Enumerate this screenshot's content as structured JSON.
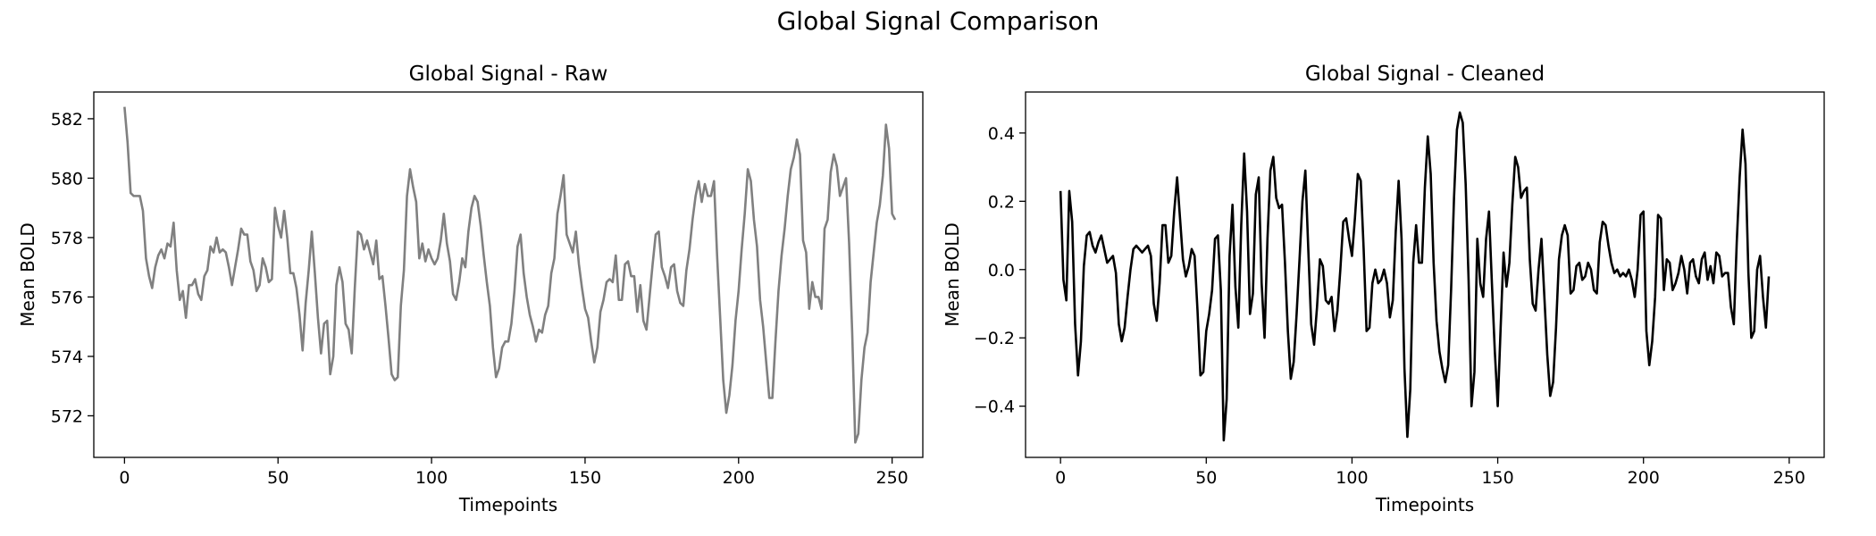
{
  "suptitle": "Global Signal Comparison",
  "chart_data": [
    {
      "type": "line",
      "title": "Global Signal - Raw",
      "xlabel": "Timepoints",
      "ylabel": "Mean BOLD",
      "xlim": [
        -10,
        260
      ],
      "ylim": [
        570.6,
        582.9
      ],
      "xticks": [
        0,
        50,
        100,
        150,
        200,
        250
      ],
      "yticks": [
        572,
        574,
        576,
        578,
        580,
        582
      ],
      "grid": false,
      "color": "#808080",
      "series": [
        {
          "x_start": 0,
          "x_step": 1,
          "values": [
            582.4,
            581.2,
            579.5,
            579.4,
            579.4,
            579.4,
            578.9,
            577.3,
            576.7,
            576.3,
            577.0,
            577.4,
            577.6,
            577.3,
            577.8,
            577.7,
            578.5,
            576.9,
            575.9,
            576.2,
            575.3,
            576.4,
            576.4,
            576.6,
            576.1,
            575.9,
            576.7,
            576.9,
            577.7,
            577.5,
            578.0,
            577.5,
            577.6,
            577.5,
            577.0,
            576.4,
            577.0,
            577.6,
            578.3,
            578.1,
            578.1,
            577.2,
            576.9,
            576.2,
            576.4,
            577.3,
            577.0,
            576.5,
            576.6,
            579.0,
            578.4,
            578.0,
            578.9,
            578.0,
            576.8,
            576.8,
            576.3,
            575.4,
            574.2,
            575.8,
            576.9,
            578.2,
            576.8,
            575.3,
            574.1,
            575.1,
            575.2,
            573.4,
            574.0,
            576.4,
            577.0,
            576.5,
            575.1,
            574.9,
            574.1,
            576.3,
            578.2,
            578.1,
            577.6,
            577.9,
            577.5,
            577.1,
            577.9,
            576.6,
            576.7,
            575.7,
            574.6,
            573.4,
            573.2,
            573.3,
            575.7,
            576.9,
            579.4,
            580.3,
            579.7,
            579.2,
            577.3,
            577.8,
            577.2,
            577.6,
            577.3,
            577.1,
            577.3,
            577.9,
            578.8,
            577.8,
            577.2,
            576.1,
            575.9,
            576.5,
            577.3,
            577.0,
            578.2,
            579.0,
            579.4,
            579.2,
            578.4,
            577.4,
            576.5,
            575.7,
            574.3,
            573.3,
            573.6,
            574.3,
            574.5,
            574.5,
            575.1,
            576.2,
            577.7,
            578.1,
            576.8,
            576.0,
            575.4,
            575.0,
            574.5,
            574.9,
            574.8,
            575.4,
            575.7,
            576.8,
            577.3,
            578.8,
            579.4,
            580.1,
            578.1,
            577.8,
            577.5,
            578.2,
            577.1,
            576.3,
            575.6,
            575.3,
            574.5,
            573.8,
            574.3,
            575.5,
            575.9,
            576.5,
            576.6,
            576.5,
            577.4,
            575.9,
            575.9,
            577.1,
            577.2,
            576.7,
            576.7,
            575.5,
            576.4,
            575.2,
            574.9,
            576.0,
            577.1,
            578.1,
            578.2,
            577.0,
            576.7,
            576.3,
            577.0,
            577.1,
            576.2,
            575.8,
            575.7,
            576.9,
            577.6,
            578.6,
            579.4,
            579.9,
            579.2,
            579.8,
            579.4,
            579.4,
            579.9,
            577.4,
            575.3,
            573.2,
            572.1,
            572.7,
            573.7,
            575.2,
            576.2,
            577.6,
            578.8,
            580.3,
            579.9,
            578.6,
            577.7,
            575.9,
            575.0,
            573.8,
            572.6,
            572.6,
            574.5,
            576.2,
            577.4,
            578.3,
            579.4,
            580.3,
            580.7,
            581.3,
            580.8,
            577.9,
            577.5,
            575.6,
            576.5,
            576.0,
            576.0,
            575.6,
            578.3,
            578.6,
            580.2,
            580.8,
            580.4,
            579.4,
            579.7,
            580.0,
            577.8,
            574.8,
            571.1,
            571.4,
            573.2,
            574.3,
            574.8,
            576.5,
            577.5,
            578.5,
            579.1,
            580.1,
            581.8,
            581.0,
            578.8,
            578.6
          ]
        }
      ]
    },
    {
      "type": "line",
      "title": "Global Signal - Cleaned",
      "xlabel": "Timepoints",
      "ylabel": "Mean BOLD",
      "xlim": [
        -12,
        262
      ],
      "ylim": [
        -0.55,
        0.52
      ],
      "xticks": [
        0,
        50,
        100,
        150,
        200,
        250
      ],
      "yticks": [
        -0.4,
        -0.2,
        0.0,
        0.2,
        0.4
      ],
      "grid": false,
      "color": "#000000",
      "series": [
        {
          "x_start": 0,
          "x_step": 1,
          "values": [
            0.23,
            -0.03,
            -0.09,
            0.23,
            0.14,
            -0.16,
            -0.31,
            -0.21,
            0.01,
            0.1,
            0.11,
            0.07,
            0.05,
            0.08,
            0.1,
            0.06,
            0.02,
            0.03,
            0.04,
            -0.01,
            -0.16,
            -0.21,
            -0.17,
            -0.08,
            0.0,
            0.06,
            0.07,
            0.06,
            0.05,
            0.06,
            0.07,
            0.04,
            -0.1,
            -0.15,
            -0.04,
            0.13,
            0.13,
            0.02,
            0.04,
            0.17,
            0.27,
            0.15,
            0.03,
            -0.02,
            0.01,
            0.06,
            0.04,
            -0.12,
            -0.31,
            -0.3,
            -0.18,
            -0.13,
            -0.06,
            0.09,
            0.1,
            -0.06,
            -0.5,
            -0.38,
            0.04,
            0.19,
            -0.05,
            -0.17,
            0.13,
            0.34,
            0.17,
            -0.13,
            -0.07,
            0.22,
            0.27,
            -0.04,
            -0.2,
            0.09,
            0.29,
            0.33,
            0.21,
            0.18,
            0.19,
            0.02,
            -0.18,
            -0.32,
            -0.27,
            -0.13,
            0.03,
            0.2,
            0.29,
            0.06,
            -0.16,
            -0.22,
            -0.11,
            0.03,
            0.01,
            -0.09,
            -0.1,
            -0.08,
            -0.18,
            -0.12,
            0.0,
            0.14,
            0.15,
            0.09,
            0.04,
            0.15,
            0.28,
            0.26,
            0.06,
            -0.18,
            -0.17,
            -0.04,
            0.0,
            -0.04,
            -0.03,
            0.0,
            -0.04,
            -0.14,
            -0.09,
            0.11,
            0.26,
            0.09,
            -0.29,
            -0.49,
            -0.35,
            0.02,
            0.13,
            0.02,
            0.02,
            0.24,
            0.39,
            0.28,
            0.02,
            -0.15,
            -0.24,
            -0.29,
            -0.33,
            -0.28,
            -0.06,
            0.21,
            0.41,
            0.46,
            0.43,
            0.25,
            -0.03,
            -0.4,
            -0.3,
            0.09,
            -0.04,
            -0.08,
            0.09,
            0.17,
            -0.04,
            -0.24,
            -0.4,
            -0.17,
            0.05,
            -0.05,
            0.02,
            0.19,
            0.33,
            0.3,
            0.21,
            0.23,
            0.24,
            0.03,
            -0.1,
            -0.12,
            0.0,
            0.09,
            -0.08,
            -0.25,
            -0.37,
            -0.33,
            -0.17,
            0.03,
            0.1,
            0.13,
            0.1,
            -0.07,
            -0.06,
            0.01,
            0.02,
            -0.03,
            -0.02,
            0.02,
            0.0,
            -0.06,
            -0.07,
            0.08,
            0.14,
            0.13,
            0.07,
            0.02,
            -0.01,
            0.0,
            -0.02,
            -0.01,
            -0.02,
            0.0,
            -0.03,
            -0.08,
            0.0,
            0.16,
            0.17,
            -0.18,
            -0.28,
            -0.21,
            -0.08,
            0.16,
            0.15,
            -0.06,
            0.03,
            0.02,
            -0.06,
            -0.04,
            -0.01,
            0.04,
            0.0,
            -0.07,
            0.02,
            0.03,
            -0.02,
            -0.04,
            0.03,
            0.05,
            -0.03,
            0.01,
            -0.04,
            0.05,
            0.04,
            -0.02,
            -0.01,
            -0.01,
            -0.11,
            -0.16,
            0.08,
            0.27,
            0.41,
            0.31,
            -0.01,
            -0.2,
            -0.18,
            0.0,
            0.04,
            -0.08,
            -0.17,
            -0.02
          ]
        }
      ]
    }
  ]
}
